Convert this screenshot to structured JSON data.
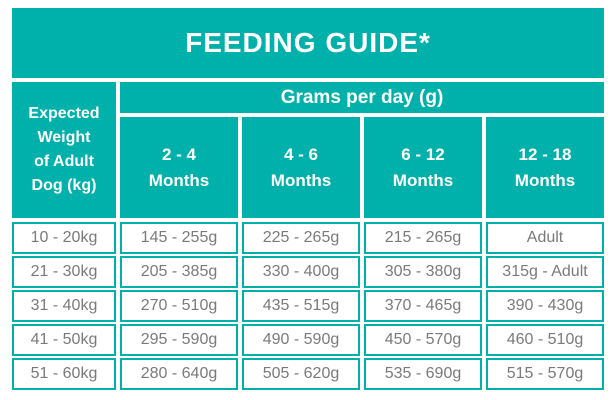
{
  "title": "FEEDING GUIDE*",
  "colors": {
    "teal": "#00b1ab",
    "header_text": "#ffffff",
    "data_text": "#7a7a7a"
  },
  "table": {
    "corner_header_lines": [
      "Expected",
      "Weight",
      "of Adult",
      "Dog (kg)"
    ],
    "group_header": "Grams per day (g)",
    "column_headers": [
      [
        "2 - 4",
        "Months"
      ],
      [
        "4 - 6",
        "Months"
      ],
      [
        "6 - 12",
        "Months"
      ],
      [
        "12 - 18",
        "Months"
      ]
    ],
    "rows": [
      {
        "weight": "10 - 20kg",
        "values": [
          "145 - 255g",
          "225 - 265g",
          "215 - 265g",
          "Adult"
        ]
      },
      {
        "weight": "21 - 30kg",
        "values": [
          "205 - 385g",
          "330 - 400g",
          "305 - 380g",
          "315g - Adult"
        ]
      },
      {
        "weight": "31 - 40kg",
        "values": [
          "270 - 510g",
          "435 - 515g",
          "370 - 465g",
          "390 - 430g"
        ]
      },
      {
        "weight": "41 - 50kg",
        "values": [
          "295 - 590g",
          "490 - 590g",
          "450 - 570g",
          "460 - 510g"
        ]
      },
      {
        "weight": "51 - 60kg",
        "values": [
          "280 - 640g",
          "505 - 620g",
          "535 - 690g",
          "515 - 570g"
        ]
      }
    ]
  }
}
